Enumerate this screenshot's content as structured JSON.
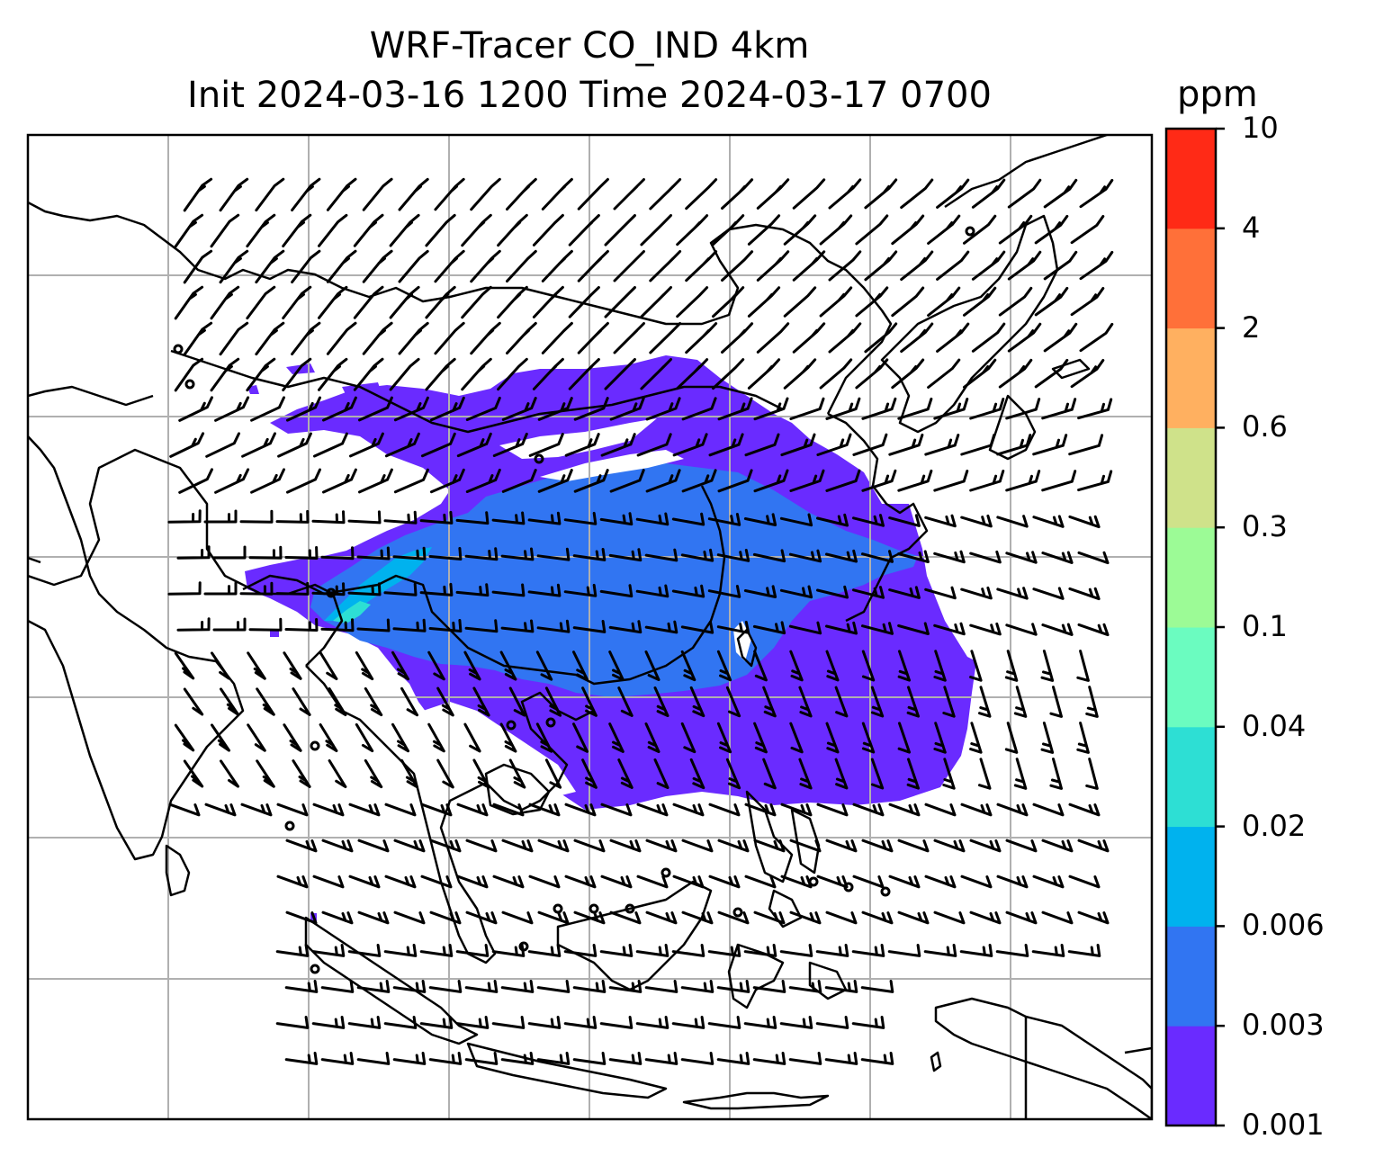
{
  "title_line1": "WRF-Tracer CO_IND 4km",
  "title_line2": "Init 2024-03-16 1200 Time 2024-03-17 0700",
  "colorbar": {
    "unit": "ppm",
    "levels": [
      "0.001",
      "0.003",
      "0.006",
      "0.02",
      "0.04",
      "0.1",
      "0.3",
      "0.6",
      "2",
      "4",
      "10"
    ],
    "colors": [
      "#6a2bff",
      "#3175f2",
      "#00b2ee",
      "#2ddfd4",
      "#6bfcc0",
      "#9cfb96",
      "#cfe28a",
      "#ffb060",
      "#ff7039",
      "#ff2a16"
    ]
  },
  "plume_colors": {
    "outer": "#6a2bff",
    "inner": "#3175f2",
    "core": "#00b2ee",
    "trace": "#2ddfd4"
  },
  "map": {
    "gridline_color": "#b0b0b0",
    "coastline_color": "#000000",
    "wind_barbs": true,
    "calm_markers": true
  }
}
